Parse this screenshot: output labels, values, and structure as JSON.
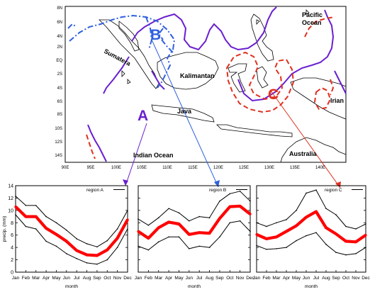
{
  "map": {
    "lat_ticks": [
      "8N",
      "6N",
      "4N",
      "2N",
      "EQ",
      "2S",
      "4S",
      "6S",
      "8S",
      "10S",
      "12S",
      "14S"
    ],
    "lon_ticks": [
      "90E",
      "95E",
      "100E",
      "105E",
      "110E",
      "115E",
      "120E",
      "125E",
      "130E",
      "135E",
      "140E"
    ],
    "place_labels": {
      "sumatera": "Sumatera",
      "kalimantan": "Kalimantan",
      "java": "Java",
      "irian": "Irian",
      "pacific": "Pacific\nOcean",
      "indian": "Indian Ocean",
      "australia": "Australia"
    },
    "region_labels": {
      "a": "A",
      "b": "B",
      "c": "C"
    },
    "colors": {
      "purple": "#6a1fd0",
      "blue": "#3060e0",
      "red": "#e03020"
    }
  },
  "chart_data": [
    {
      "type": "line",
      "legend": "region A",
      "categories": [
        "Jan",
        "Feb",
        "Mar",
        "Apr",
        "May",
        "Jun",
        "Jul",
        "Aug",
        "Sep",
        "Oct",
        "Nov",
        "Dec"
      ],
      "ylabel": "precip. (mm)",
      "xlabel": "month",
      "ylim": [
        0,
        14
      ],
      "yticks": [
        0,
        2,
        4,
        6,
        8,
        10,
        12,
        14
      ],
      "series": [
        {
          "values": [
            12.3,
            10.8,
            10.8,
            9.0,
            8.0,
            6.8,
            5.4,
            4.6,
            4.1,
            5.1,
            7.0,
            10.0
          ]
        },
        {
          "values": [
            10.6,
            9.0,
            9.0,
            7.1,
            6.1,
            5.0,
            3.5,
            2.8,
            2.7,
            3.6,
            5.5,
            8.5
          ]
        },
        {
          "values": [
            9.3,
            7.4,
            7.0,
            5.0,
            4.2,
            3.0,
            2.2,
            1.5,
            1.3,
            2.0,
            4.0,
            7.0
          ]
        }
      ]
    },
    {
      "type": "line",
      "legend": "region B",
      "categories": [
        "Jan",
        "Feb",
        "Mar",
        "Apr",
        "May",
        "Jun",
        "Jul",
        "Aug",
        "Sep",
        "Oct",
        "Nov",
        "Dec"
      ],
      "xlabel": "month",
      "ylim": [
        0,
        14
      ],
      "series": [
        {
          "values": [
            8.6,
            7.6,
            8.8,
            10.3,
            9.6,
            8.3,
            9.0,
            8.8,
            11.5,
            12.7,
            13.1,
            11.5
          ]
        },
        {
          "values": [
            6.6,
            5.5,
            7.2,
            8.1,
            7.8,
            6.1,
            6.4,
            6.3,
            8.7,
            10.6,
            10.7,
            9.4
          ]
        },
        {
          "values": [
            4.2,
            3.6,
            4.9,
            5.7,
            5.7,
            3.8,
            4.2,
            4.0,
            5.7,
            8.0,
            8.3,
            6.6
          ]
        }
      ]
    },
    {
      "type": "line",
      "legend": "region C",
      "categories": [
        "Jan",
        "Feb",
        "Mar",
        "Apr",
        "May",
        "Jun",
        "Jul",
        "Aug",
        "Sep",
        "Oct",
        "Nov",
        "Dec"
      ],
      "xlabel": "month",
      "ylim": [
        0,
        14
      ],
      "series": [
        {
          "values": [
            8.0,
            7.4,
            8.0,
            8.5,
            10.0,
            12.8,
            13.3,
            10.3,
            9.3,
            7.4,
            7.0,
            7.8
          ]
        },
        {
          "values": [
            6.1,
            5.4,
            5.7,
            6.6,
            7.5,
            8.9,
            9.8,
            7.2,
            6.2,
            5.0,
            4.9,
            6.0
          ]
        },
        {
          "values": [
            4.3,
            3.7,
            3.8,
            4.0,
            5.1,
            5.9,
            6.4,
            4.5,
            3.2,
            2.8,
            3.0,
            4.0
          ]
        }
      ]
    }
  ]
}
